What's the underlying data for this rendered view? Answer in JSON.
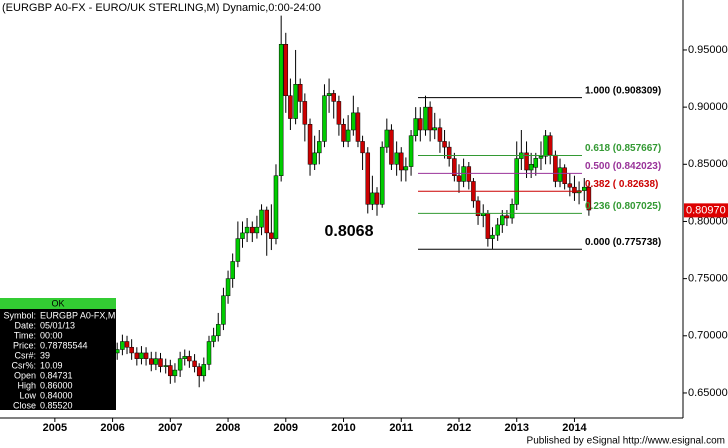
{
  "chart_data": {
    "type": "candlestick",
    "title": "(EURGBP A0-FX - EURO/UK STERLING,M) Dynamic,0:00-24:00",
    "up_color": "#00cc00",
    "down_color": "#cc0000",
    "xlim": [
      2004.05,
      2015.88
    ],
    "xticks": [
      2005,
      2006,
      2007,
      2008,
      2009,
      2010,
      2011,
      2012,
      2013,
      2014
    ],
    "ylim": [
      0.6281,
      0.9937
    ],
    "yticks": [
      {
        "value": 0.65,
        "label": "0.650009"
      },
      {
        "value": 0.7,
        "label": "0.700009"
      },
      {
        "value": 0.75,
        "label": "0.750009"
      },
      {
        "value": 0.8,
        "label": "0.800009"
      },
      {
        "value": 0.85,
        "label": "0.850009"
      },
      {
        "value": 0.9,
        "label": "0.900009"
      },
      {
        "value": 0.95,
        "label": "0.95000"
      }
    ],
    "x": [
      2006.0,
      2006.08,
      2006.17,
      2006.25,
      2006.33,
      2006.42,
      2006.5,
      2006.58,
      2006.67,
      2006.75,
      2006.83,
      2006.92,
      2007.0,
      2007.08,
      2007.17,
      2007.25,
      2007.33,
      2007.42,
      2007.5,
      2007.58,
      2007.67,
      2007.75,
      2007.83,
      2007.92,
      2008.0,
      2008.08,
      2008.17,
      2008.25,
      2008.33,
      2008.42,
      2008.5,
      2008.58,
      2008.67,
      2008.75,
      2008.83,
      2008.92,
      2009.0,
      2009.08,
      2009.17,
      2009.25,
      2009.33,
      2009.42,
      2009.5,
      2009.58,
      2009.67,
      2009.75,
      2009.83,
      2009.92,
      2010.0,
      2010.08,
      2010.17,
      2010.25,
      2010.33,
      2010.42,
      2010.5,
      2010.58,
      2010.67,
      2010.75,
      2010.83,
      2010.92,
      2011.0,
      2011.08,
      2011.17,
      2011.25,
      2011.33,
      2011.42,
      2011.5,
      2011.58,
      2011.67,
      2011.75,
      2011.83,
      2011.92,
      2012.0,
      2012.08,
      2012.17,
      2012.25,
      2012.33,
      2012.42,
      2012.5,
      2012.58,
      2012.67,
      2012.75,
      2012.83,
      2012.92,
      2013.0,
      2013.08,
      2013.17,
      2013.25,
      2013.33,
      2013.42,
      2013.5,
      2013.58,
      2013.67,
      2013.75,
      2013.83,
      2013.92,
      2014.0,
      2014.08,
      2014.17,
      2014.25
    ],
    "open": [
      0.695,
      0.685,
      0.688,
      0.695,
      0.69,
      0.685,
      0.68,
      0.685,
      0.68,
      0.675,
      0.68,
      0.673,
      0.674,
      0.665,
      0.67,
      0.68,
      0.682,
      0.678,
      0.673,
      0.665,
      0.675,
      0.695,
      0.7,
      0.71,
      0.735,
      0.75,
      0.765,
      0.785,
      0.79,
      0.795,
      0.79,
      0.795,
      0.81,
      0.79,
      0.785,
      0.84,
      0.955,
      0.91,
      0.89,
      0.92,
      0.905,
      0.885,
      0.85,
      0.86,
      0.87,
      0.91,
      0.912,
      0.905,
      0.885,
      0.87,
      0.88,
      0.895,
      0.87,
      0.86,
      0.815,
      0.825,
      0.815,
      0.865,
      0.88,
      0.85,
      0.86,
      0.845,
      0.848,
      0.875,
      0.89,
      0.88,
      0.9,
      0.88,
      0.882,
      0.87,
      0.865,
      0.855,
      0.84,
      0.835,
      0.848,
      0.835,
      0.818,
      0.805,
      0.807,
      0.785,
      0.788,
      0.797,
      0.805,
      0.803,
      0.815,
      0.855,
      0.86,
      0.845,
      0.84731,
      0.8552,
      0.857,
      0.875,
      0.858,
      0.835,
      0.847,
      0.833,
      0.83,
      0.825,
      0.827,
      0.83
    ],
    "high": [
      0.702,
      0.694,
      0.701,
      0.7,
      0.697,
      0.69,
      0.691,
      0.69,
      0.686,
      0.686,
      0.685,
      0.68,
      0.679,
      0.676,
      0.686,
      0.688,
      0.687,
      0.684,
      0.676,
      0.681,
      0.7,
      0.707,
      0.72,
      0.742,
      0.757,
      0.772,
      0.8,
      0.8,
      0.803,
      0.8,
      0.805,
      0.815,
      0.813,
      0.815,
      0.85,
      0.98,
      0.965,
      0.925,
      0.95,
      0.925,
      0.912,
      0.89,
      0.875,
      0.88,
      0.92,
      0.925,
      0.915,
      0.91,
      0.89,
      0.893,
      0.91,
      0.9,
      0.875,
      0.865,
      0.84,
      0.83,
      0.87,
      0.89,
      0.885,
      0.87,
      0.865,
      0.856,
      0.88,
      0.9,
      0.9,
      0.91,
      0.905,
      0.895,
      0.89,
      0.88,
      0.87,
      0.86,
      0.85,
      0.855,
      0.852,
      0.838,
      0.822,
      0.815,
      0.81,
      0.795,
      0.803,
      0.81,
      0.81,
      0.82,
      0.87,
      0.88,
      0.87,
      0.86,
      0.86,
      0.87,
      0.88,
      0.878,
      0.862,
      0.855,
      0.85,
      0.842,
      0.84,
      0.835,
      0.838,
      0.834
    ],
    "low": [
      0.68,
      0.679,
      0.683,
      0.684,
      0.679,
      0.674,
      0.675,
      0.674,
      0.669,
      0.67,
      0.668,
      0.667,
      0.658,
      0.659,
      0.664,
      0.674,
      0.672,
      0.668,
      0.655,
      0.66,
      0.67,
      0.69,
      0.695,
      0.705,
      0.728,
      0.742,
      0.76,
      0.777,
      0.782,
      0.782,
      0.785,
      0.788,
      0.77,
      0.775,
      0.78,
      0.835,
      0.895,
      0.88,
      0.885,
      0.895,
      0.87,
      0.84,
      0.845,
      0.85,
      0.865,
      0.895,
      0.89,
      0.875,
      0.865,
      0.865,
      0.875,
      0.865,
      0.845,
      0.807,
      0.81,
      0.805,
      0.812,
      0.86,
      0.845,
      0.84,
      0.835,
      0.835,
      0.84,
      0.87,
      0.87,
      0.875,
      0.87,
      0.872,
      0.86,
      0.855,
      0.848,
      0.835,
      0.825,
      0.83,
      0.828,
      0.812,
      0.797,
      0.795,
      0.778,
      0.776,
      0.783,
      0.79,
      0.796,
      0.798,
      0.81,
      0.845,
      0.838,
      0.838,
      0.84,
      0.845,
      0.85,
      0.85,
      0.83,
      0.83,
      0.828,
      0.822,
      0.818,
      0.815,
      0.818,
      0.805
    ],
    "close": [
      0.685,
      0.688,
      0.695,
      0.69,
      0.685,
      0.68,
      0.685,
      0.68,
      0.675,
      0.68,
      0.673,
      0.674,
      0.665,
      0.67,
      0.68,
      0.682,
      0.678,
      0.673,
      0.665,
      0.675,
      0.695,
      0.7,
      0.71,
      0.735,
      0.75,
      0.765,
      0.785,
      0.79,
      0.795,
      0.79,
      0.795,
      0.81,
      0.79,
      0.785,
      0.84,
      0.955,
      0.91,
      0.89,
      0.92,
      0.905,
      0.885,
      0.85,
      0.86,
      0.87,
      0.91,
      0.912,
      0.905,
      0.885,
      0.87,
      0.88,
      0.895,
      0.87,
      0.86,
      0.815,
      0.825,
      0.815,
      0.865,
      0.88,
      0.85,
      0.86,
      0.845,
      0.848,
      0.875,
      0.89,
      0.88,
      0.9,
      0.88,
      0.882,
      0.87,
      0.865,
      0.855,
      0.84,
      0.835,
      0.848,
      0.835,
      0.818,
      0.805,
      0.807,
      0.785,
      0.788,
      0.797,
      0.805,
      0.803,
      0.815,
      0.855,
      0.86,
      0.845,
      0.85,
      0.8552,
      0.857,
      0.875,
      0.858,
      0.835,
      0.847,
      0.833,
      0.83,
      0.825,
      0.827,
      0.83,
      0.81
    ],
    "fib_levels": [
      {
        "value": 0.908309,
        "label": "1.000 (0.908309)",
        "color": "#000000"
      },
      {
        "value": 0.857667,
        "label": "0.618 (0.857667)",
        "color": "#339933"
      },
      {
        "value": 0.842023,
        "label": "0.500 (0.842023)",
        "color": "#993399"
      },
      {
        "value": 0.82638,
        "label": "0.382 ( 0.82638)",
        "color": "#cc0000"
      },
      {
        "value": 0.807025,
        "label": "0.236 (0.807025)",
        "color": "#339933"
      },
      {
        "value": 0.775738,
        "label": "0.000 (0.775738)",
        "color": "#000000"
      }
    ],
    "annotation": "0.8068",
    "last_price": {
      "value": 0.8097,
      "label": "0.80970"
    },
    "footer": "Published by eSignal http://www.esignal.com"
  },
  "data_window": {
    "header": "OK",
    "rows": [
      [
        "Symbol:",
        "EURGBP A0-FX,M"
      ],
      [
        "Date:",
        "05/01/13"
      ],
      [
        "Time:",
        "00:00"
      ],
      [
        "Price:",
        "0.78785544"
      ],
      [
        "Csr#:",
        "39"
      ],
      [
        "Csr%:",
        "10.09"
      ],
      [
        "Open",
        "0.84731"
      ],
      [
        "High",
        "0.86000"
      ],
      [
        "Low",
        "0.84000"
      ],
      [
        "Close",
        "0.85520"
      ]
    ]
  }
}
